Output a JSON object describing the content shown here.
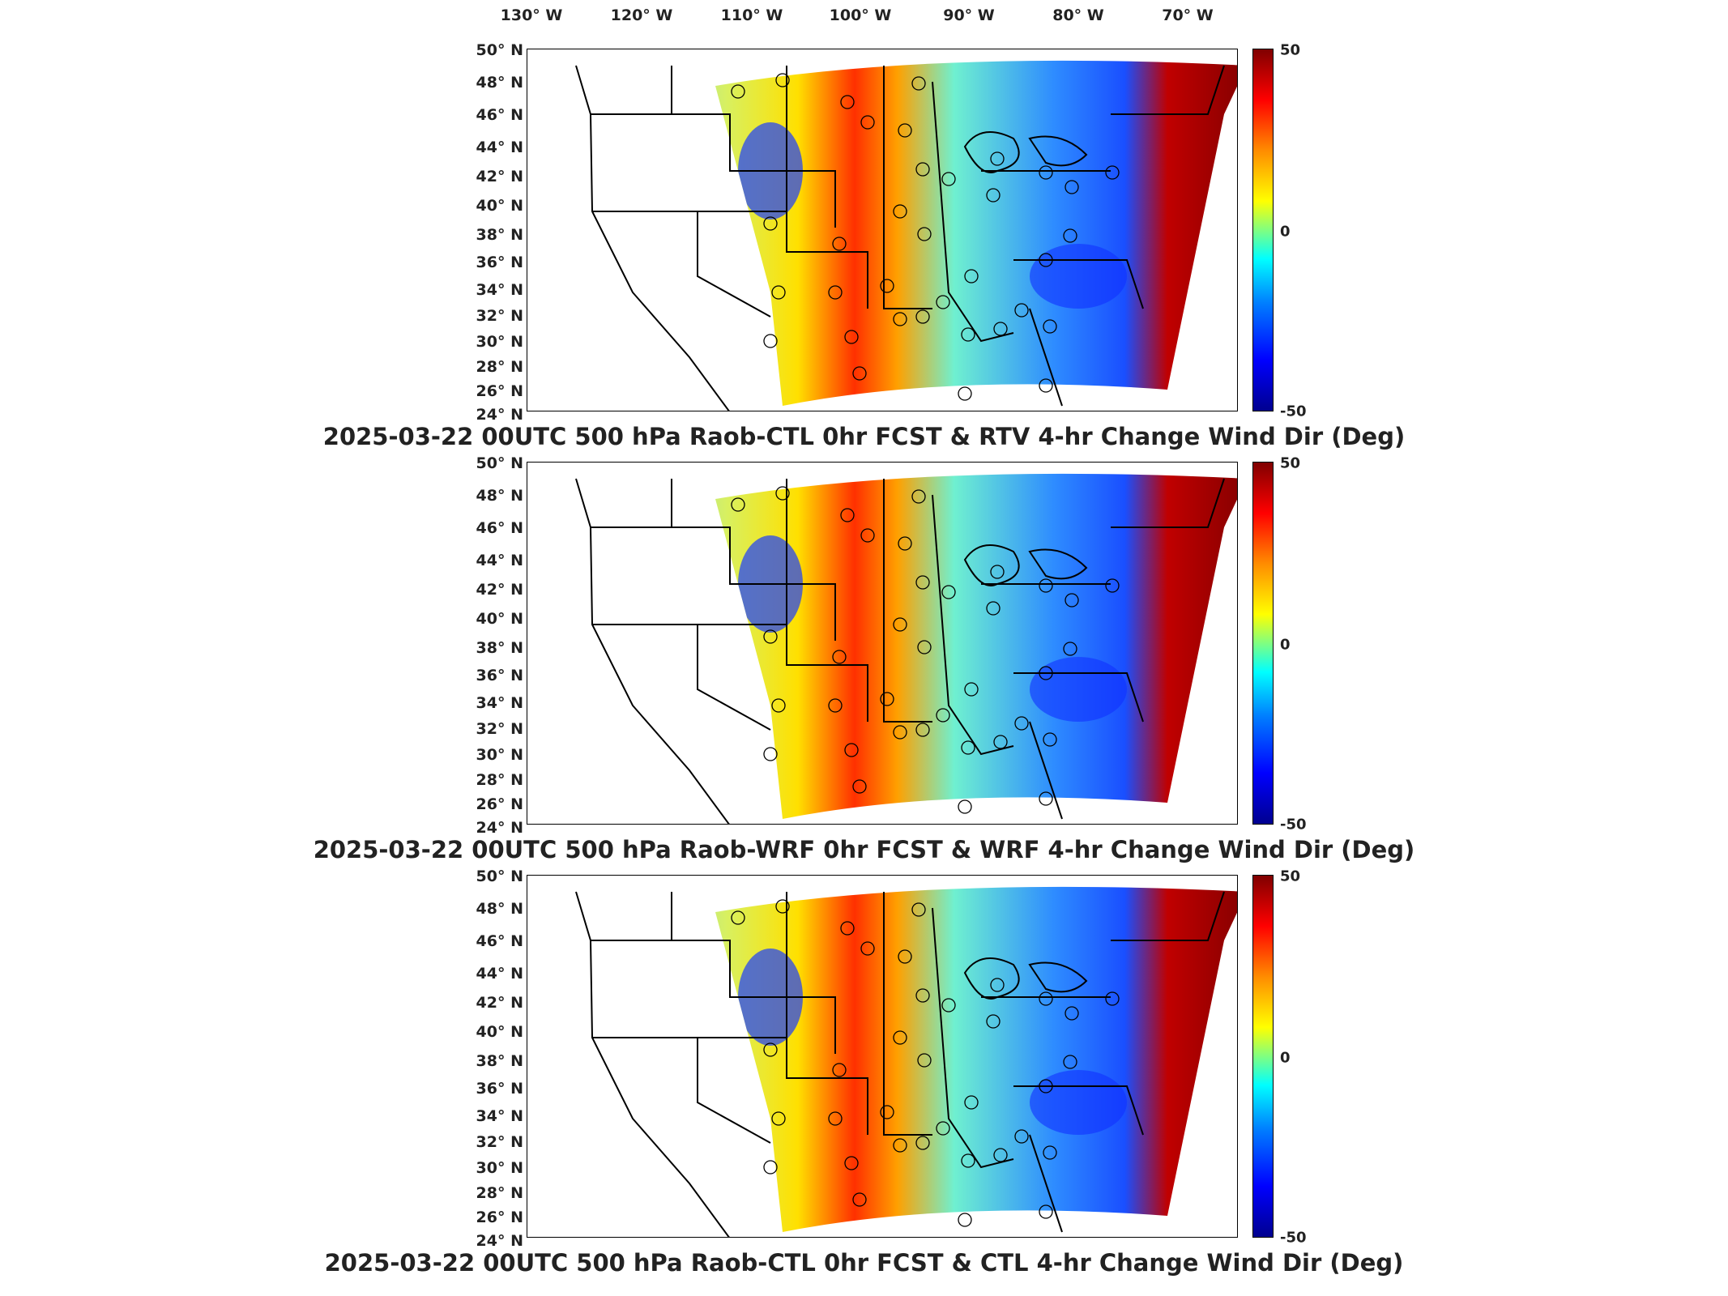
{
  "lon_labels": [
    "130° W",
    "120° W",
    "110° W",
    "100° W",
    "90° W",
    "80° W",
    "70° W"
  ],
  "lat_labels": [
    "50° N",
    "48° N",
    "46° N",
    "44° N",
    "42° N",
    "40° N",
    "38° N",
    "36° N",
    "34° N",
    "32° N",
    "30° N",
    "28° N",
    "26° N",
    "24° N"
  ],
  "colorbar": {
    "max_label": "50",
    "mid_label": "0",
    "min_label": "-50",
    "range": [
      -50,
      50
    ]
  },
  "panels": [
    {
      "title": "2025-03-22 00UTC 500 hPa Raob-CTL 0hr FCST & RTV 4-hr Change Wind Dir (Deg)"
    },
    {
      "title": "2025-03-22 00UTC 500 hPa Raob-WRF 0hr FCST & WRF 4-hr Change Wind Dir (Deg)"
    },
    {
      "title": "2025-03-22 00UTC 500 hPa Raob-CTL 0hr FCST & CTL 4-hr Change Wind Dir (Deg)"
    }
  ],
  "colors": {
    "dark_red": "#800000",
    "red": "#ff0000",
    "yellow": "#ffff00",
    "cyan": "#00ffff",
    "blue": "#0000ff",
    "dark_blue": "#00008f"
  }
}
